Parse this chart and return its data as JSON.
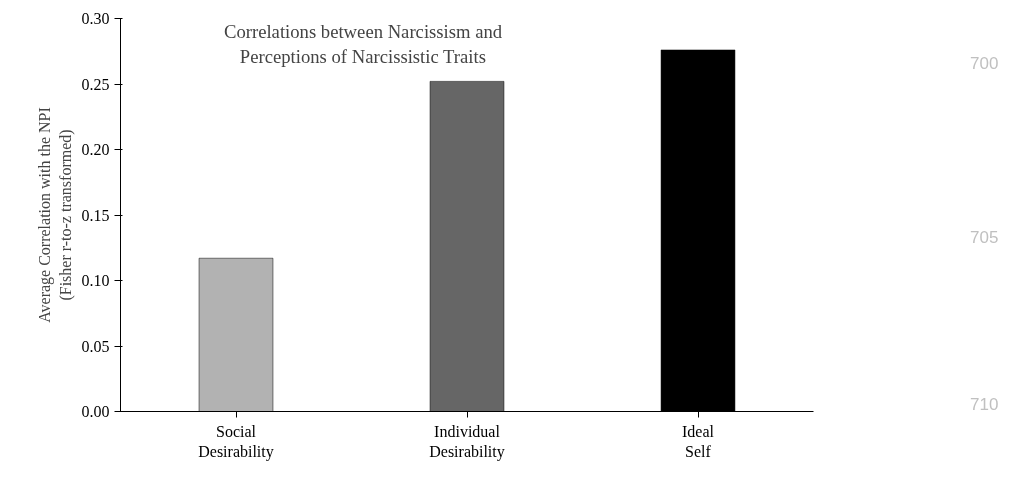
{
  "chart_data": {
    "type": "bar",
    "title": "Correlations between Narcissism and\nPerceptions of Narcissistic Traits",
    "ylabel": "Average Correlation with the NPI\n(Fisher r-to-z transformed)",
    "categories": [
      "Social\nDesirability",
      "Individual\nDesirability",
      "Ideal\nSelf"
    ],
    "values": [
      0.117,
      0.252,
      0.276
    ],
    "colors": [
      "#b2b2b2",
      "#666666",
      "#000000"
    ],
    "ylim": [
      0,
      0.3
    ],
    "yticks": [
      {
        "value": 0,
        "label": "0.00"
      },
      {
        "value": 0.05,
        "label": "0.05"
      },
      {
        "value": 0.1,
        "label": "0.10"
      },
      {
        "value": 0.15,
        "label": "0.15"
      },
      {
        "value": 0.2,
        "label": "0.20"
      },
      {
        "value": 0.25,
        "label": "0.25"
      },
      {
        "value": 0.3,
        "label": "0.30"
      }
    ],
    "grid": false,
    "annotations": [
      "700",
      "705",
      "710"
    ]
  }
}
